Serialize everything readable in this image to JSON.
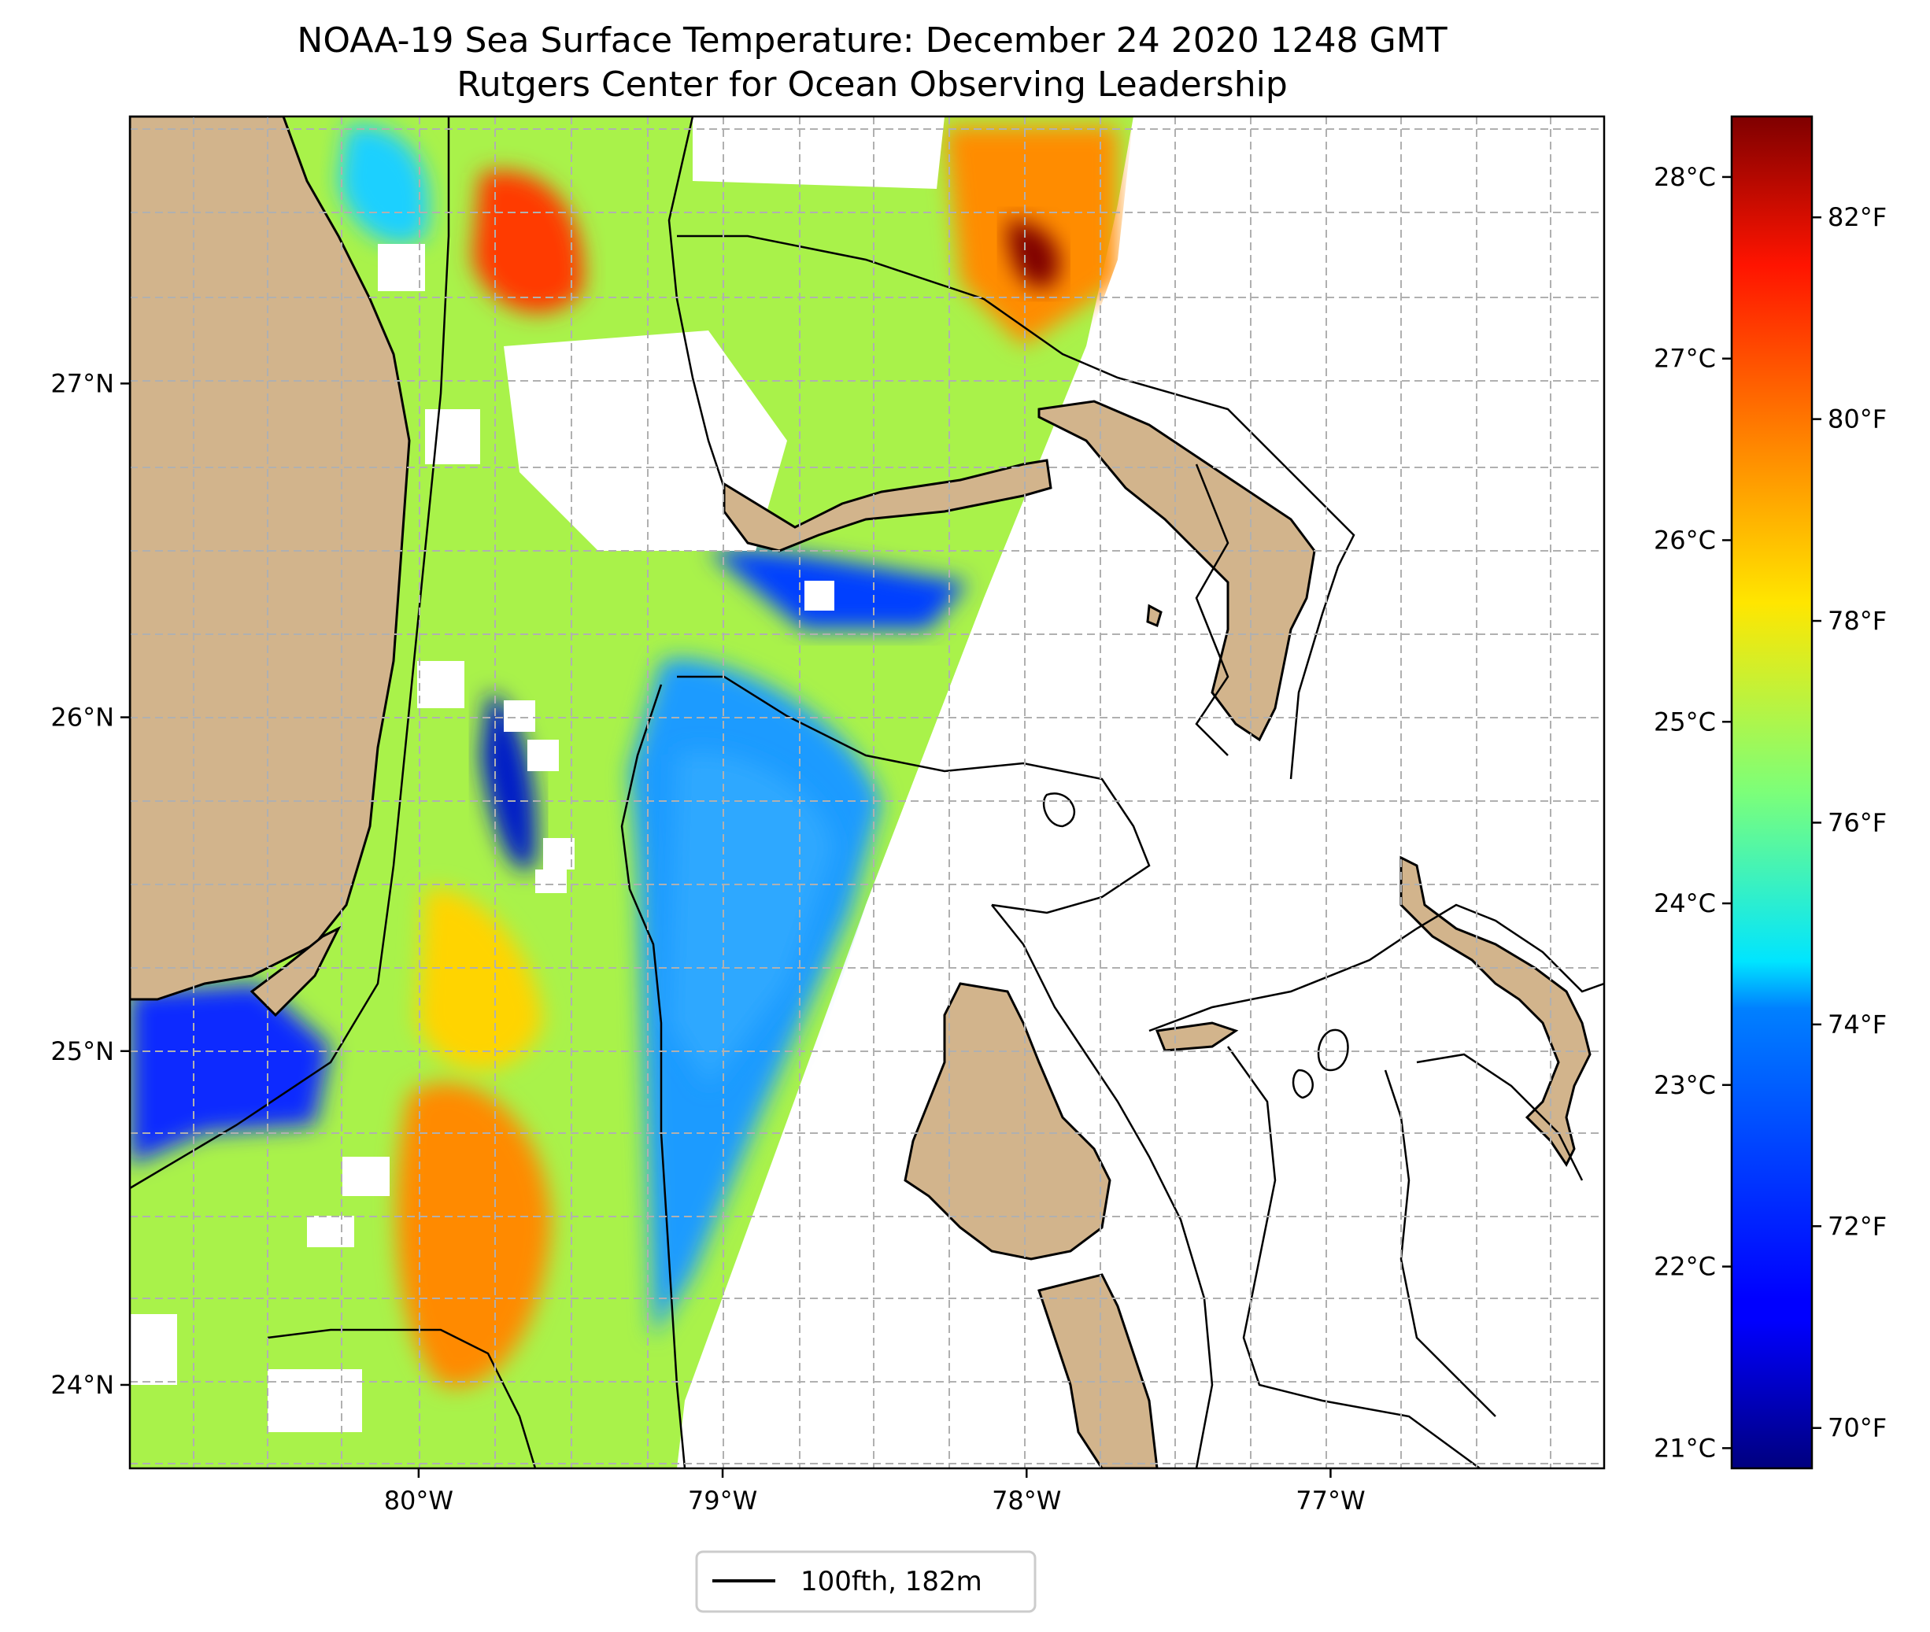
{
  "title_line1": "NOAA-19 Sea Surface Temperature: December 24 2020 1248 GMT",
  "title_line2": "Rutgers Center for Ocean Observing Leadership",
  "map": {
    "lon_range": [
      -80.95,
      -76.1
    ],
    "lat_range": [
      23.75,
      27.8
    ],
    "grid": true,
    "grid_style": "dashed",
    "land_color": "#d2b48c",
    "no_data_color": "#ffffff",
    "colormap": "jet",
    "x_ticks": [
      {
        "value": -80,
        "label": "80°W"
      },
      {
        "value": -79,
        "label": "79°W"
      },
      {
        "value": -78,
        "label": "78°W"
      },
      {
        "value": -77,
        "label": "77°W"
      }
    ],
    "y_ticks": [
      {
        "value": 24,
        "label": "24°N"
      },
      {
        "value": 25,
        "label": "25°N"
      },
      {
        "value": 26,
        "label": "26°N"
      },
      {
        "value": 27,
        "label": "27°N"
      }
    ]
  },
  "colorbar": {
    "min_f": 69.6,
    "max_f": 83.0,
    "fahrenheit_ticks": [
      {
        "value": 70,
        "label": "70°F"
      },
      {
        "value": 72,
        "label": "72°F"
      },
      {
        "value": 74,
        "label": "74°F"
      },
      {
        "value": 76,
        "label": "76°F"
      },
      {
        "value": 78,
        "label": "78°F"
      },
      {
        "value": 80,
        "label": "80°F"
      },
      {
        "value": 82,
        "label": "82°F"
      }
    ],
    "celsius_ticks": [
      {
        "value": 21,
        "label": "21°C"
      },
      {
        "value": 22,
        "label": "22°C"
      },
      {
        "value": 23,
        "label": "23°C"
      },
      {
        "value": 24,
        "label": "24°C"
      },
      {
        "value": 25,
        "label": "25°C"
      },
      {
        "value": 26,
        "label": "26°C"
      },
      {
        "value": 27,
        "label": "27°C"
      },
      {
        "value": 28,
        "label": "28°C"
      }
    ]
  },
  "legend": {
    "label": "100fth, 182m",
    "line_color": "#000000"
  }
}
